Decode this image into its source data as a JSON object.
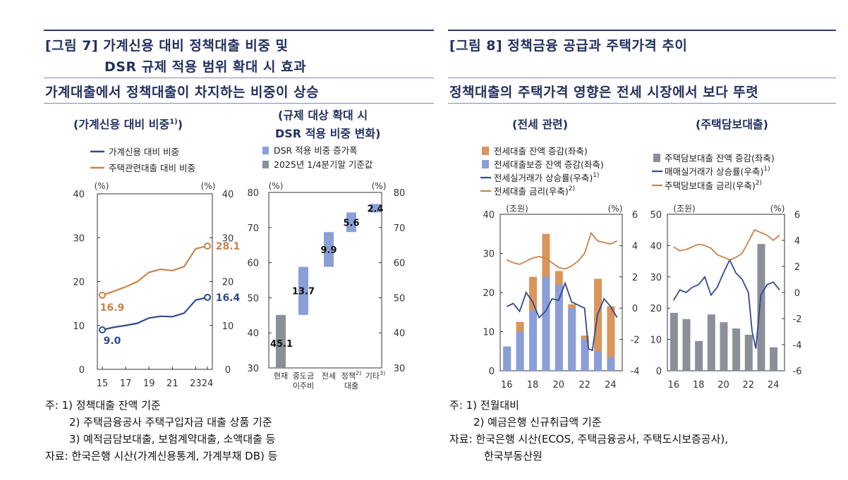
{
  "colors": {
    "navy": "#2f4a8f",
    "orange": "#c8844a",
    "bar_orange": "#d9955a",
    "bar_blue": "#8a9fd8",
    "gray": "#8a8f98",
    "title": "#22305e"
  },
  "fig7": {
    "title_line1": "[그림 7] 가계신용 대비 정책대출 비중 및",
    "title_line2": "DSR 규제 적용 범위 확대 시 효과",
    "subtitle": "가계대출에서 정책대출이 차지하는 비중이 상승",
    "left_panel_title": "(가계신용 대비 비중",
    "left_panel_sup": "1)",
    "left_panel_close": ")",
    "right_panel_title_1": "(규제 대상 확대 시",
    "right_panel_title_2": "DSR 적용 비중 변화)",
    "notes": [
      "주: 1) 정책대출 잔액 기준",
      "2) 주택금융공사 주택구입자금 대출 상품 기준",
      "3) 예적금담보대출, 보험계약대출, 소액대출 등",
      "자료: 한국은행 시산(가계신용통계, 가계부채 DB) 등"
    ]
  },
  "fig8": {
    "title": "[그림 8] 정책금융 공급과 주택가격 추이",
    "subtitle": "정책대출의 주택가격 영향은 전세 시장에서 보다 뚜렷",
    "left_panel_title": "(전세 관련)",
    "right_panel_title": "(주택담보대출)",
    "notes": [
      "주: 1) 전월대비",
      "2) 예금은행 신규취급액 기준",
      "자료: 한국은행 시산(ECOS, 주택금융공사, 주택도시보증공사),",
      "한국부동산원"
    ]
  },
  "chart_data": [
    {
      "type": "line",
      "legend": [
        "가계신용 대비 비중",
        "주택관련대출 대비 비중"
      ],
      "unit_left": "(%)",
      "unit_right": "(%)",
      "ylim": [
        0,
        40
      ],
      "yticks": [
        "0",
        "10",
        "20",
        "30",
        "40"
      ],
      "xticks": [
        "15",
        "17",
        "19",
        "21",
        "23",
        "24"
      ],
      "series": [
        {
          "name": "가계신용 대비 비중",
          "x": [
            15,
            16,
            17,
            18,
            19,
            20,
            21,
            22,
            23,
            24
          ],
          "values": [
            9.0,
            9.6,
            10.0,
            10.5,
            11.7,
            12.1,
            12.0,
            12.8,
            15.8,
            16.4
          ]
        },
        {
          "name": "주택관련대출 대비 비중",
          "x": [
            15,
            16,
            17,
            18,
            19,
            20,
            21,
            22,
            23,
            24
          ],
          "values": [
            16.9,
            17.8,
            18.8,
            20.0,
            22.1,
            22.8,
            22.5,
            23.4,
            27.5,
            28.1
          ]
        }
      ],
      "labels": [
        "9.0",
        "16.9",
        "16.4",
        "28.1"
      ]
    },
    {
      "type": "bar",
      "legend": [
        "DSR 적용 비중 증가폭",
        "2025년 1/4분기말 기준값"
      ],
      "unit_left": "(%)",
      "unit_right": "(%)",
      "ylim": [
        30,
        80
      ],
      "yticks": [
        "30",
        "40",
        "50",
        "60",
        "70",
        "80"
      ],
      "categories": [
        {
          "line1": "현재",
          "line2": "",
          "sup": ""
        },
        {
          "line1": "중도금",
          "line2": "이주비",
          "sup": ""
        },
        {
          "line1": "전세",
          "line2": "",
          "sup": ""
        },
        {
          "line1": "정책",
          "line2": "대출",
          "sup": "2)"
        },
        {
          "line1": "기타",
          "line2": "",
          "sup": "3)"
        }
      ],
      "base": 45.1,
      "increments": [
        13.7,
        9.9,
        5.6,
        2.4
      ],
      "labels": [
        "45.1",
        "13.7",
        "9.9",
        "5.6",
        "2.4"
      ]
    },
    {
      "type": "bar+line",
      "legend": [
        {
          "text": "전세대출 잔액 증감(좌축)",
          "sup": ""
        },
        {
          "text": "전세대출보증 잔액 증감(좌축)",
          "sup": ""
        },
        {
          "text": "전세실거래가 상승률(우축)",
          "sup": "1)"
        },
        {
          "text": "전세대출 금리(우축)",
          "sup": "2)"
        }
      ],
      "unit_left": "(조원)",
      "unit_right": "(%)",
      "ylim_left": [
        0,
        40
      ],
      "ylim_right": [
        -4,
        6
      ],
      "yticks_left": [
        "0",
        "10",
        "20",
        "30",
        "40"
      ],
      "yticks_right": [
        "-4",
        "-2",
        "0",
        "2",
        "4",
        "6"
      ],
      "xticks": [
        "16",
        "18",
        "20",
        "22",
        "24"
      ],
      "years": [
        2016,
        2017,
        2018,
        2019,
        2020,
        2021,
        2022,
        2023,
        2024
      ],
      "bars_loan": [
        6.2,
        12.5,
        24.0,
        35.0,
        25.5,
        17.0,
        9.0,
        23.5,
        16.5
      ],
      "bars_guarantee": [
        6.2,
        10.0,
        15.5,
        24.0,
        22.0,
        16.0,
        8.0,
        5.0,
        3.5
      ],
      "series": [
        {
          "name": "전세실거래가 상승률",
          "x": [
            2016,
            2016.5,
            2017,
            2017.5,
            2018,
            2018.5,
            2019,
            2019.5,
            2020,
            2020.5,
            2021,
            2021.5,
            2022,
            2022.3,
            2022.6,
            2023,
            2023.5,
            2024,
            2024.5
          ],
          "values": [
            0.1,
            0.3,
            -0.2,
            1.0,
            0.4,
            -0.6,
            -0.2,
            0.6,
            0.5,
            1.6,
            0.4,
            0.2,
            0.0,
            -2.6,
            -2.7,
            -0.4,
            0.6,
            0.1,
            -0.6
          ]
        },
        {
          "name": "전세대출 금리",
          "x": [
            2016,
            2016.5,
            2017,
            2017.5,
            2018,
            2018.5,
            2019,
            2019.5,
            2020,
            2020.5,
            2021,
            2021.5,
            2022,
            2022.5,
            2023,
            2023.5,
            2024,
            2024.5
          ],
          "values": [
            3.1,
            2.9,
            2.8,
            3.0,
            3.2,
            3.3,
            3.2,
            2.9,
            2.6,
            2.5,
            2.7,
            3.0,
            3.5,
            4.8,
            4.3,
            4.2,
            4.1,
            4.3
          ]
        }
      ]
    },
    {
      "type": "bar+line",
      "legend": [
        {
          "text": "주택담보대출 잔액 증감(좌축)",
          "sup": ""
        },
        {
          "text": "매매실거래가 상승률(우축)",
          "sup": "1)"
        },
        {
          "text": "주택담보대출 금리(우축)",
          "sup": "2)"
        }
      ],
      "unit_left": "(조원)",
      "unit_right": "(%)",
      "ylim_left": [
        0,
        50
      ],
      "ylim_right": [
        -6,
        6
      ],
      "yticks_left": [
        "0",
        "10",
        "20",
        "30",
        "40",
        "50"
      ],
      "yticks_right": [
        "-6",
        "-4",
        "-2",
        "0",
        "2",
        "4",
        "6"
      ],
      "xticks": [
        "16",
        "18",
        "20",
        "22",
        "24"
      ],
      "years": [
        2016,
        2017,
        2018,
        2019,
        2020,
        2021,
        2022,
        2023,
        2024
      ],
      "bars": [
        18.5,
        16.5,
        9.5,
        18.0,
        15.5,
        13.5,
        11.5,
        40.5,
        7.5
      ],
      "series": [
        {
          "name": "매매실거래가 상승률",
          "x": [
            2016,
            2016.5,
            2017,
            2017.5,
            2018,
            2018.5,
            2019,
            2019.5,
            2020,
            2020.5,
            2021,
            2021.5,
            2022,
            2022.3,
            2022.6,
            2023,
            2023.5,
            2024,
            2024.5
          ],
          "values": [
            -0.6,
            0.2,
            0.0,
            0.4,
            0.6,
            1.2,
            -0.2,
            0.4,
            1.5,
            2.5,
            1.5,
            1.0,
            0.0,
            -3.0,
            -4.3,
            -0.2,
            0.6,
            0.8,
            0.2
          ]
        },
        {
          "name": "주택담보대출 금리",
          "x": [
            2016,
            2016.5,
            2017,
            2017.5,
            2018,
            2018.5,
            2019,
            2019.5,
            2020,
            2020.5,
            2021,
            2021.5,
            2022,
            2022.5,
            2023,
            2023.5,
            2024,
            2024.5
          ],
          "values": [
            3.5,
            3.2,
            3.3,
            3.5,
            3.7,
            3.6,
            3.4,
            2.9,
            2.7,
            2.5,
            2.7,
            3.0,
            3.9,
            4.8,
            4.6,
            4.4,
            4.0,
            4.4
          ]
        }
      ]
    }
  ]
}
